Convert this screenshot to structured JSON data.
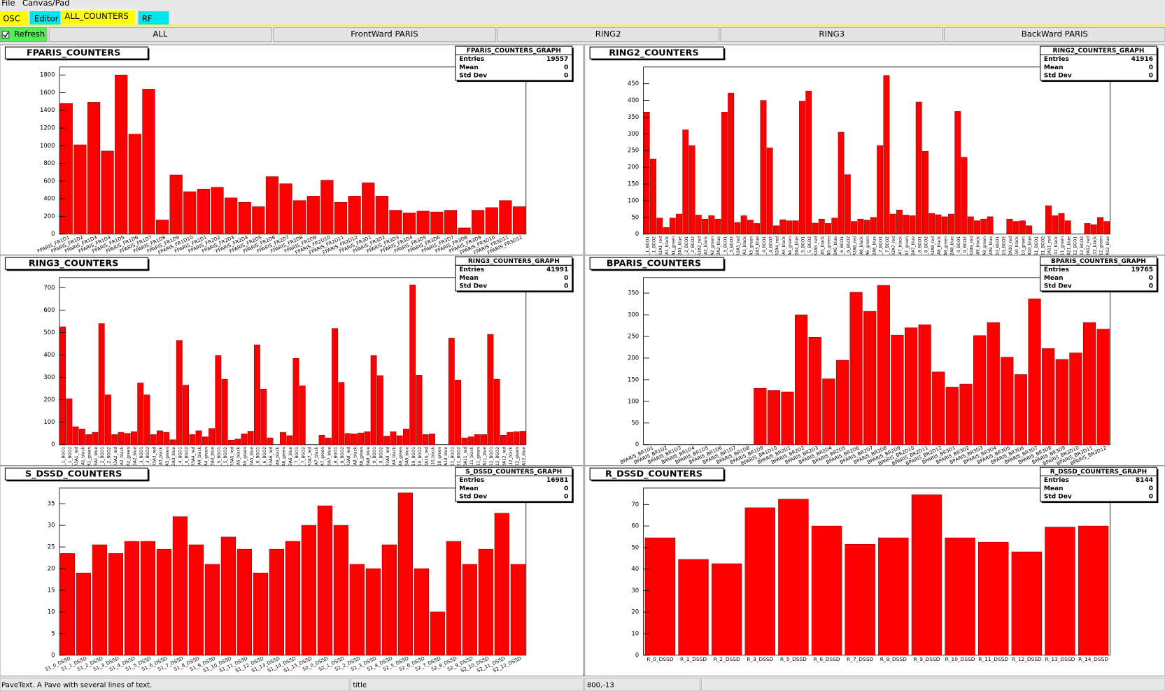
{
  "menu": [
    "File",
    "Canvas/Pad"
  ],
  "tabs": [
    "OSC",
    "Editor",
    "ALL_COUNTERS",
    "RF"
  ],
  "refresh": "Refresh",
  "buttons": [
    "ALL",
    "FrontWard PARIS",
    "RING2",
    "RING3",
    "BackWard PARIS"
  ],
  "stats_labels": [
    "Entries",
    "Mean",
    "Std Dev"
  ],
  "status": [
    "PaveText. A Pave with several lines of text.",
    "title",
    "800,-13"
  ],
  "chart_data": [
    {
      "type": "bar",
      "title": "FPARIS_COUNTERS",
      "color": "#ff0000",
      "stats": {
        "title": "FPARIS_COUNTERS_GRAPH",
        "entries": "19557",
        "mean": "0",
        "std_dev": "0"
      },
      "categories": [
        "FPARIS_FR1D1",
        "FPARIS_FR1D2",
        "FPARIS_FR1D3",
        "FPARIS_FR1D4",
        "FPARIS_FR1D5",
        "FPARIS_FR1D6",
        "FPARIS_FR1D7",
        "FPARIS_FR1D8",
        "FPARIS_FR1D9",
        "FPARIS_FR1D10",
        "FPARIS_FR2D1",
        "FPARIS_FR2D2",
        "FPARIS_FR2D3",
        "FPARIS_FR2D4",
        "FPARIS_FR2D5",
        "FPARIS_FR2D6",
        "FPARIS_FR2D7",
        "FPARIS_FR2D8",
        "FPARIS_FR2D9",
        "FPARIS_FR2D10",
        "FPARIS_FR2D11",
        "FPARIS_FR2D12",
        "FPARIS_FR3D1",
        "FPARIS_FR3D2",
        "FPARIS_FR3D3",
        "FPARIS_FR3D4",
        "FPARIS_FR3D5",
        "FPARIS_FR3D6",
        "FPARIS_FR3D7",
        "FPARIS_FR3D8",
        "FPARIS_FR3D9",
        "FPARIS_FR3D10",
        "FPARIS_FR3D11",
        "FPARIS_FR3D12"
      ],
      "values": [
        1480,
        1010,
        1490,
        940,
        1800,
        1130,
        1640,
        160,
        670,
        480,
        510,
        530,
        410,
        360,
        310,
        650,
        570,
        380,
        430,
        610,
        360,
        430,
        580,
        430,
        270,
        240,
        260,
        250,
        270,
        70,
        270,
        300,
        380,
        310
      ],
      "ylim": [
        0,
        1890
      ],
      "yticks": [
        0,
        200,
        400,
        600,
        800,
        1000,
        1200,
        1400,
        1600,
        1800
      ]
    },
    {
      "type": "bar",
      "title": "RING2_COUNTERS",
      "color": "#ff0000",
      "stats": {
        "title": "RING2_COUNTERS_GRAPH",
        "entries": "41916",
        "mean": "0",
        "std_dev": "0"
      },
      "categories": [
        "R2_1_BGO1",
        "R2_1_BGO2",
        "R2A1_red",
        "R2A1_black",
        "R2A1_green",
        "R2A1_blue",
        "R2_2_BGO1",
        "R2_2_BGO2",
        "R2A2_red",
        "R2A2_black",
        "R2A2_green",
        "R2A2_blue",
        "R2_3_BGO1",
        "R2_3_BGO2",
        "R2A3_red",
        "R2A3_black",
        "R2A3_green",
        "R2A3_blue",
        "R2_4_BGO1",
        "R2_4_BGO2",
        "R2A4_red",
        "R2A4_black",
        "R2A4_green",
        "R2A4_blue",
        "R2_5_BGO1",
        "R2_5_BGO2",
        "R2A5_red",
        "R2A5_black",
        "R2A5_green",
        "R2A5_blue",
        "R2_6_BGO1",
        "R2_6_BGO2",
        "R2A6_red",
        "R2A6_black",
        "R2A6_green",
        "R2A6_blue",
        "R2_7_BGO1",
        "R2_7_BGO2",
        "R2A7_red",
        "R2A7_black",
        "R2A7_green",
        "R2A7_blue",
        "R2_8_BGO1",
        "R2_8_BGO2",
        "R2A8_red",
        "R2A8_black",
        "R2A8_green",
        "R2A8_blue",
        "R2_9_BGO1",
        "R2_9_BGO2",
        "R2A9_red",
        "R2A9_black",
        "R2A9_green",
        "R2A9_blue",
        "R2_10_BGO1",
        "R2_10_BGO2",
        "R2A10_red",
        "R2A10_black",
        "R2A10_green",
        "R2A10_blue",
        "R2_11_BGO1",
        "R2_11_BGO2",
        "R2A11_red",
        "R2A11_black",
        "R2A11_green",
        "R2A11_blue",
        "R2_12_BGO1",
        "R2_12_BGO2",
        "R2A12_red",
        "R2A12_black",
        "R2A12_green",
        "R2A12_blue"
      ],
      "values": [
        365,
        225,
        48,
        20,
        48,
        60,
        312,
        265,
        57,
        45,
        55,
        45,
        365,
        422,
        35,
        55,
        42,
        32,
        400,
        258,
        25,
        43,
        40,
        40,
        398,
        428,
        33,
        45,
        32,
        48,
        305,
        178,
        38,
        45,
        42,
        50,
        265,
        475,
        60,
        72,
        57,
        55,
        395,
        248,
        62,
        58,
        52,
        60,
        367,
        230,
        52,
        40,
        45,
        52,
        0,
        0,
        45,
        38,
        40,
        25,
        0,
        0,
        85,
        55,
        62,
        40,
        0,
        0,
        32,
        28,
        50,
        38
      ],
      "ylim": [
        0,
        500
      ],
      "yticks": [
        0,
        50,
        100,
        150,
        200,
        250,
        300,
        350,
        400,
        450
      ]
    },
    {
      "type": "bar",
      "title": "RING3_COUNTERS",
      "color": "#ff0000",
      "stats": {
        "title": "RING3_COUNTERS_GRAPH",
        "entries": "41991",
        "mean": "0",
        "std_dev": "0"
      },
      "categories": [
        "R3_1_BGO1",
        "R3_1_BGO2",
        "R3A1_red",
        "R3A1_black",
        "R3A1_green",
        "R3A1_blue",
        "R3_2_BGO1",
        "R3_2_BGO2",
        "R3A2_red",
        "R3A2_black",
        "R3A2_green",
        "R3A2_blue",
        "R3_3_BGO1",
        "R3_3_BGO2",
        "R3A3_red",
        "R3A3_black",
        "R3A3_green",
        "R3A3_blue",
        "R3_4_BGO1",
        "R3_4_BGO2",
        "R3A4_red",
        "R3A4_black",
        "R3A4_green",
        "R3A4_blue",
        "R3_5_BGO1",
        "R3_5_BGO2",
        "R3A5_red",
        "R3A5_black",
        "R3A5_green",
        "R3A5_blue",
        "R3_6_BGO1",
        "R3_6_BGO2",
        "R3A6_red",
        "R3A6_black",
        "R3A6_green",
        "R3A6_blue",
        "R3_7_BGO1",
        "R3_7_BGO2",
        "R3A7_red",
        "R3A7_black",
        "R3A7_green",
        "R3A7_blue",
        "R3_8_BGO1",
        "R3_8_BGO2",
        "R3A8_red",
        "R3A8_black",
        "R3A8_green",
        "R3A8_blue",
        "R3_9_BGO1",
        "R3_9_BGO2",
        "R3A9_red",
        "R3A9_black",
        "R3A9_green",
        "R3A9_blue",
        "R3_10_BGO1",
        "R3_10_BGO2",
        "R3A10_red",
        "R3A10_black",
        "R3A10_green",
        "R3A10_blue",
        "R3_11_BGO1",
        "R3_11_BGO2",
        "R3A11_red",
        "R3A11_black",
        "R3A11_green",
        "R3A11_blue",
        "R3_12_BGO1",
        "R3_12_BGO2",
        "R3A12_red",
        "R3A12_black",
        "R3A12_green",
        "R3A12_blue"
      ],
      "values": [
        525,
        205,
        80,
        70,
        45,
        55,
        540,
        222,
        45,
        55,
        50,
        58,
        275,
        222,
        45,
        62,
        55,
        22,
        465,
        265,
        45,
        62,
        35,
        72,
        397,
        292,
        20,
        25,
        48,
        60,
        445,
        248,
        30,
        0,
        55,
        40,
        385,
        262,
        0,
        0,
        42,
        30,
        518,
        278,
        50,
        48,
        52,
        58,
        397,
        308,
        38,
        58,
        40,
        70,
        712,
        310,
        45,
        48,
        0,
        0,
        475,
        288,
        30,
        35,
        45,
        45,
        492,
        292,
        42,
        55,
        58,
        60
      ],
      "ylim": [
        0,
        745
      ],
      "yticks": [
        0,
        100,
        200,
        300,
        400,
        500,
        600,
        700
      ]
    },
    {
      "type": "bar",
      "title": "BPARIS_COUNTERS",
      "color": "#ff0000",
      "stats": {
        "title": "BPARIS_COUNTERS_GRAPH",
        "entries": "19765",
        "mean": "0",
        "std_dev": "0"
      },
      "categories": [
        "BPARIS_BR1D1",
        "BPARIS_BR1D2",
        "BPARIS_BR1D3",
        "BPARIS_BR1D4",
        "BPARIS_BR1D5",
        "BPARIS_BR1D6",
        "BPARIS_BR1D7",
        "BPARIS_BR1D8",
        "BPARIS_BR1D9",
        "BPARIS_BR1D10",
        "BPARIS_BR2D1",
        "BPARIS_BR2D2",
        "BPARIS_BR2D3",
        "BPARIS_BR2D4",
        "BPARIS_BR2D5",
        "BPARIS_BR2D6",
        "BPARIS_BR2D7",
        "BPARIS_BR2D8",
        "BPARIS_BR2D9",
        "BPARIS_BR2D10",
        "BPARIS_BR2D11",
        "BPARIS_BR2D12",
        "BPARIS_BR3D1",
        "BPARIS_BR3D2",
        "BPARIS_BR3D3",
        "BPARIS_BR3D4",
        "BPARIS_BR3D5",
        "BPARIS_BR3D6",
        "BPARIS_BR3D7",
        "BPARIS_BR3D8",
        "BPARIS_BR3D9",
        "BPARIS_BR3D10",
        "BPARIS_BR3D11",
        "BPARIS_BR3D12"
      ],
      "values": [
        0,
        0,
        0,
        0,
        0,
        0,
        0,
        0,
        130,
        125,
        122,
        300,
        248,
        152,
        195,
        352,
        308,
        368,
        253,
        270,
        277,
        168,
        133,
        140,
        252,
        282,
        202,
        162,
        337,
        222,
        197,
        212,
        282,
        267
      ],
      "ylim": [
        0,
        386
      ],
      "yticks": [
        0,
        50,
        100,
        150,
        200,
        250,
        300,
        350
      ]
    },
    {
      "type": "bar",
      "title": "S_DSSD_COUNTERS",
      "color": "#ff0000",
      "stats": {
        "title": "S_DSSD_COUNTERS_GRAPH",
        "entries": "16981",
        "mean": "0",
        "std_dev": "0"
      },
      "categories": [
        "S1_0_DSSD",
        "S1_1_DSSD",
        "S1_2_DSSD",
        "S1_3_DSSD",
        "S1_4_DSSD",
        "S1_5_DSSD",
        "S1_6_DSSD",
        "S1_7_DSSD",
        "S1_8_DSSD",
        "S1_9_DSSD",
        "S1_10_DSSD",
        "S1_11_DSSD",
        "S1_12_DSSD",
        "S1_13_DSSD",
        "S1_14_DSSD",
        "S1_15_DSSD",
        "S2_0_DSSD",
        "S2_1_DSSD",
        "S2_2_DSSD",
        "S2_3_DSSD",
        "S2_4_DSSD",
        "S2_5_DSSD",
        "S2_6_DSSD",
        "S2_7_DSSD",
        "S2_8_DSSD",
        "S2_9_DSSD",
        "S2_10_DSSD",
        "S2_11_DSSD",
        "S2_12_DSSD"
      ],
      "values": [
        23.5,
        19,
        25.5,
        23.5,
        26.3,
        26.3,
        24.5,
        32,
        25.5,
        21,
        27.3,
        24.5,
        19,
        24.5,
        26.3,
        30,
        34.5,
        30,
        21,
        20,
        25.5,
        37.5,
        20,
        10,
        26.3,
        21,
        24.5,
        32.8,
        21
      ],
      "ylim": [
        0,
        38.6
      ],
      "yticks": [
        0,
        5,
        10,
        15,
        20,
        25,
        30,
        35
      ]
    },
    {
      "type": "bar",
      "title": "R_DSSD_COUNTERS",
      "color": "#ff0000",
      "stats": {
        "title": "R_DSSD_COUNTERS_GRAPH",
        "entries": "8144",
        "mean": "0",
        "std_dev": "0"
      },
      "categories": [
        "R_0_DSSD",
        "R_1_DSSD",
        "R_2_DSSD",
        "R_3_DSSD",
        "R_5_DSSD",
        "R_6_DSSD",
        "R_7_DSSD",
        "R_8_DSSD",
        "R_9_DSSD",
        "R_10_DSSD",
        "R_11_DSSD",
        "R_12_DSSD",
        "R_13_DSSD",
        "R_14_DSSD"
      ],
      "values": [
        54.5,
        44.5,
        42.5,
        68.5,
        72.5,
        60,
        51.5,
        54.5,
        74.5,
        54.5,
        52.5,
        48,
        59.5,
        60
      ],
      "ylim": [
        0,
        77.6
      ],
      "yticks": [
        0,
        10,
        20,
        30,
        40,
        50,
        60,
        70
      ]
    }
  ]
}
